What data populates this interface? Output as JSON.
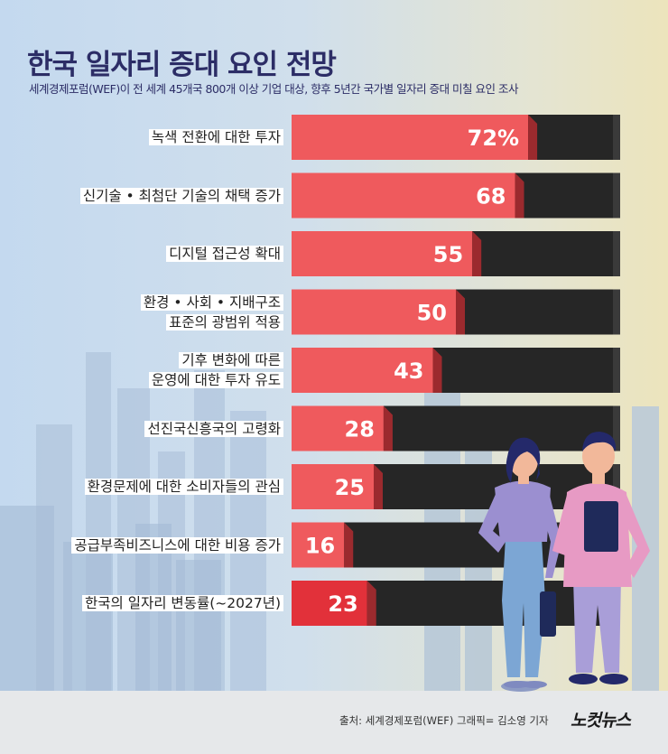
{
  "title": "한국 일자리 증대 요인 전망",
  "subtitle": "세계경제포럼(WEF)이 전 세계 45개국 800개 이상 기업 대상, 향후 5년간 국가별 일자리 증대 미칠 요인 조사",
  "source": "출처: 세계경제포럼(WEF)   그래픽= 김소영 기자",
  "logo": "노컷뉴스",
  "colors": {
    "bar": "#ef5a5d",
    "bar_highlight": "#e2313a",
    "bar_track": "#262626",
    "title": "#2c2d66"
  },
  "chart_data": {
    "type": "bar",
    "orientation": "horizontal",
    "categories": [
      [
        "녹색 전환에 대한 투자"
      ],
      [
        "신기술 • 최첨단 기술의 채택 증가"
      ],
      [
        "디지털 접근성 확대"
      ],
      [
        "환경 • 사회 • 지배구조",
        "표준의 광범위 적용"
      ],
      [
        "기후 변화에 따른",
        "운영에 대한 투자 유도"
      ],
      [
        "선진국신흥국의 고령화"
      ],
      [
        "환경문제에 대한 소비자들의 관심"
      ],
      [
        "공급부족비즈니스에 대한 비용 증가"
      ],
      [
        "한국의 일자리 변동률(~2027년)"
      ]
    ],
    "values": [
      72,
      68,
      55,
      50,
      43,
      28,
      25,
      16,
      23
    ],
    "value_labels": [
      "72%",
      "68",
      "55",
      "50",
      "43",
      "28",
      "25",
      "16",
      "23"
    ],
    "highlight_index": 8,
    "xlim": [
      0,
      100
    ]
  }
}
